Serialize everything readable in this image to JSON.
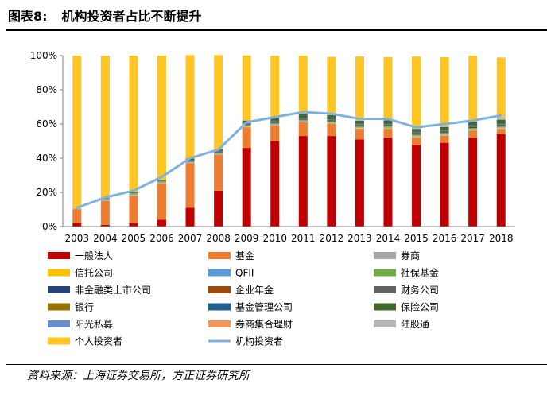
{
  "header": {
    "figure_label": "图表8:",
    "title": "机构投资者占比不断提升"
  },
  "source": "资料来源：上海证券交易所，方正证券研究所",
  "chart_data": {
    "type": "bar",
    "stacked": true,
    "categories": [
      "2003",
      "2004",
      "2005",
      "2006",
      "2007",
      "2008",
      "2009",
      "2010",
      "2011",
      "2012",
      "2013",
      "2014",
      "2015",
      "2016",
      "2017",
      "2018"
    ],
    "ylim": [
      0,
      100
    ],
    "yticks": [
      "0%",
      "20%",
      "40%",
      "60%",
      "80%",
      "100%"
    ],
    "grid": false,
    "legend_position": "bottom",
    "series": [
      {
        "name": "一般法人",
        "color": "#C00000",
        "values": [
          2,
          1,
          2,
          4,
          11,
          21,
          46,
          50,
          53,
          53,
          51,
          52,
          48,
          49,
          52,
          54
        ]
      },
      {
        "name": "基金",
        "color": "#ED7D31",
        "values": [
          8,
          14,
          16,
          21,
          26,
          21,
          12,
          9,
          8,
          7,
          6,
          5,
          4,
          4,
          4,
          3
        ]
      },
      {
        "name": "券商",
        "color": "#A5A5A5",
        "values": [
          0.5,
          0.5,
          0.5,
          0.5,
          0.3,
          0.3,
          0.3,
          0.3,
          0.3,
          0.3,
          0.3,
          0.4,
          0.5,
          0.4,
          0.3,
          0.3
        ]
      },
      {
        "name": "信托公司",
        "color": "#FFC000",
        "values": [
          0.2,
          0.2,
          0.2,
          0.2,
          0.2,
          0.2,
          0.3,
          0.3,
          0.3,
          0.4,
          0.5,
          0.5,
          0.5,
          0.5,
          0.5,
          0.5
        ]
      },
      {
        "name": "QFII",
        "color": "#5B9BD5",
        "values": [
          0,
          0.3,
          0.5,
          0.5,
          0.4,
          0.3,
          0.3,
          0.3,
          0.3,
          0.3,
          0.3,
          0.3,
          0.3,
          0.3,
          0.3,
          0.3
        ]
      },
      {
        "name": "社保基金",
        "color": "#70AD47",
        "values": [
          0,
          0.3,
          0.4,
          0.4,
          0.5,
          0.5,
          0.5,
          0.5,
          0.6,
          0.6,
          0.6,
          0.6,
          0.5,
          0.6,
          0.6,
          0.6
        ]
      },
      {
        "name": "非金融类上市公司",
        "color": "#264478",
        "values": [
          0,
          0,
          0,
          0.1,
          0.2,
          0.3,
          0.4,
          0.4,
          0.5,
          0.5,
          0.5,
          0.5,
          0.5,
          0.5,
          0.6,
          0.6
        ]
      },
      {
        "name": "企业年金",
        "color": "#9E480E",
        "values": [
          0,
          0,
          0,
          0,
          0,
          0.1,
          0.1,
          0.1,
          0.1,
          0.1,
          0.1,
          0.1,
          0.1,
          0.1,
          0.1,
          0.1
        ]
      },
      {
        "name": "财务公司",
        "color": "#636363",
        "values": [
          0,
          0,
          0,
          0,
          0.3,
          0.3,
          0.5,
          0.5,
          0.5,
          0.5,
          0.5,
          0.5,
          0.5,
          0.5,
          0.5,
          0.5
        ]
      },
      {
        "name": "银行",
        "color": "#997300",
        "values": [
          0,
          0,
          0,
          0,
          0,
          0,
          0.1,
          0.1,
          0.1,
          0.1,
          0.1,
          0.1,
          0.1,
          0.1,
          0.1,
          0.1
        ]
      },
      {
        "name": "基金管理公司",
        "color": "#255E91",
        "values": [
          0,
          0,
          0,
          0,
          0,
          0.3,
          0.4,
          0.4,
          0.5,
          0.5,
          0.4,
          0.4,
          0.4,
          0.4,
          0.4,
          0.4
        ]
      },
      {
        "name": "保险公司",
        "color": "#43682B",
        "values": [
          0,
          0.3,
          0.4,
          0.5,
          0.9,
          0.8,
          1.1,
          1.6,
          1.9,
          1.9,
          1.6,
          1.7,
          1.7,
          1.8,
          2.0,
          2.1
        ]
      },
      {
        "name": "阳光私募",
        "color": "#698ED0",
        "values": [
          0,
          0,
          0,
          0,
          0,
          0,
          0.1,
          0.1,
          0.1,
          0.1,
          0.1,
          0.1,
          0.1,
          0.1,
          0.1,
          0.1
        ]
      },
      {
        "name": "券商集合理财",
        "color": "#F1975A",
        "values": [
          0,
          0,
          0,
          0,
          0,
          0,
          0.1,
          0.1,
          0.1,
          0.1,
          0.1,
          0.1,
          0.1,
          0.1,
          0.1,
          0.1
        ]
      },
      {
        "name": "陆股通",
        "color": "#B7B7B7",
        "values": [
          0,
          0,
          0,
          0,
          0,
          0,
          0,
          0,
          0,
          0,
          0,
          0.1,
          0.3,
          0.6,
          0.9,
          1.3
        ]
      },
      {
        "name": "个人投资者",
        "color": "#FFC525",
        "values": [
          89.3,
          83.4,
          80.0,
          72.8,
          60.5,
          55.2,
          37.9,
          36.2,
          33.7,
          33.9,
          37.4,
          36.8,
          41.9,
          40.1,
          37.5,
          34.9
        ]
      }
    ],
    "line": {
      "name": "机构投资者",
      "color": "#7FB2DE",
      "values": [
        11,
        17,
        21,
        29,
        40,
        45,
        61,
        64,
        67,
        66,
        63,
        63,
        58,
        60,
        62,
        65
      ]
    }
  }
}
